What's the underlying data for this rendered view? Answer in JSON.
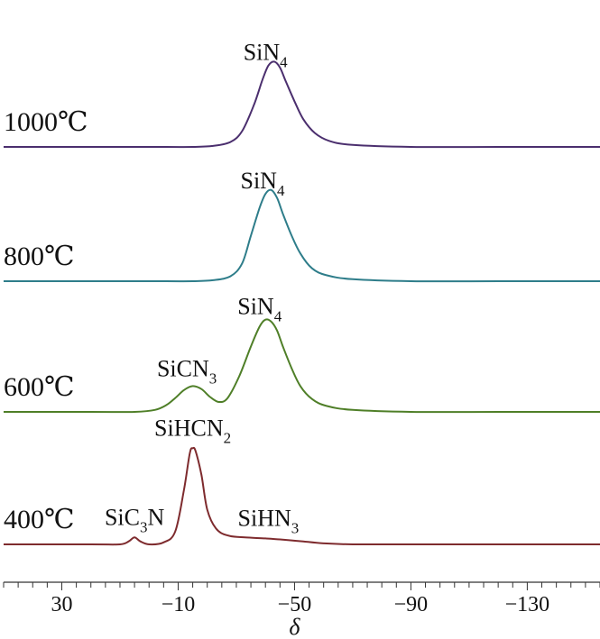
{
  "chart_data": {
    "type": "line",
    "xlabel": "δ",
    "ylabel": "",
    "xlim": [
      50,
      -155
    ],
    "x_ticks": [
      30,
      -10,
      -50,
      -90,
      -130
    ],
    "tick_labels": [
      "30",
      "−10",
      "−50",
      "−90",
      "−130"
    ],
    "grid": false,
    "series": [
      {
        "name": "1000℃",
        "color": "#4b2f6e",
        "baseline_rank": 3,
        "x": [
          50,
          20,
          0,
          -15,
          -22,
          -28,
          -32,
          -36,
          -39,
          -41,
          -43,
          -45,
          -47,
          -50,
          -53,
          -57,
          -62,
          -70,
          -90,
          -120,
          -155
        ],
        "y": [
          0,
          0,
          0,
          0,
          0.01,
          0.05,
          0.16,
          0.42,
          0.68,
          0.82,
          0.86,
          0.8,
          0.66,
          0.46,
          0.28,
          0.14,
          0.06,
          0.02,
          0,
          0,
          0
        ]
      },
      {
        "name": "800℃",
        "color": "#2e7d8a",
        "baseline_rank": 2,
        "x": [
          50,
          20,
          0,
          -15,
          -22,
          -28,
          -32,
          -35,
          -38,
          -40,
          -42,
          -44,
          -46,
          -49,
          -52,
          -56,
          -61,
          -70,
          -90,
          -120,
          -155
        ],
        "y": [
          0,
          0,
          0,
          0,
          0.01,
          0.05,
          0.18,
          0.46,
          0.74,
          0.88,
          0.92,
          0.84,
          0.68,
          0.46,
          0.28,
          0.13,
          0.06,
          0.02,
          0,
          0,
          0
        ]
      },
      {
        "name": "600℃",
        "color": "#4f7f28",
        "baseline_rank": 1,
        "x": [
          50,
          20,
          5,
          -2,
          -6,
          -9,
          -12,
          -15,
          -18,
          -21,
          -24,
          -27,
          -31,
          -35,
          -38,
          -40,
          -42,
          -44,
          -46,
          -49,
          -52,
          -56,
          -61,
          -70,
          -90,
          -120,
          -155
        ],
        "y": [
          0,
          0,
          0,
          0.02,
          0.07,
          0.14,
          0.22,
          0.26,
          0.23,
          0.15,
          0.1,
          0.14,
          0.36,
          0.66,
          0.86,
          0.93,
          0.91,
          0.82,
          0.66,
          0.44,
          0.26,
          0.13,
          0.06,
          0.02,
          0,
          0,
          0
        ]
      },
      {
        "name": "400℃",
        "color": "#7e2b2e",
        "baseline_rank": 0,
        "x": [
          50,
          20,
          10,
          7,
          5,
          3,
          0,
          -5,
          -9,
          -12,
          -14,
          -15,
          -16,
          -18,
          -20,
          -23,
          -27,
          -33,
          -40,
          -45,
          -49,
          -53,
          -60,
          -70,
          -90,
          -120,
          -155
        ],
        "y": [
          0,
          0,
          0,
          0.03,
          0.07,
          0.03,
          0,
          0.02,
          0.13,
          0.55,
          0.92,
          0.97,
          0.94,
          0.7,
          0.35,
          0.16,
          0.09,
          0.07,
          0.06,
          0.05,
          0.04,
          0.03,
          0.01,
          0,
          0,
          0,
          0
        ]
      }
    ],
    "annotations": [
      {
        "base": "SiN",
        "sub": "4",
        "series": 0,
        "x": -40
      },
      {
        "base": "SiN",
        "sub": "4",
        "series": 1,
        "x": -39
      },
      {
        "base": "SiN",
        "sub": "4",
        "series": 2,
        "x": -38
      },
      {
        "base": "SiCN",
        "sub": "3",
        "series": 2,
        "x": -13
      },
      {
        "base": "SiHCN",
        "sub": "2",
        "series": 3,
        "x": -15
      },
      {
        "base": "SiC",
        "sub": "3",
        "base2": "N",
        "series": 3,
        "x": 5
      },
      {
        "base": "SiHN",
        "sub": "3",
        "series": 3,
        "x": -41
      }
    ]
  }
}
